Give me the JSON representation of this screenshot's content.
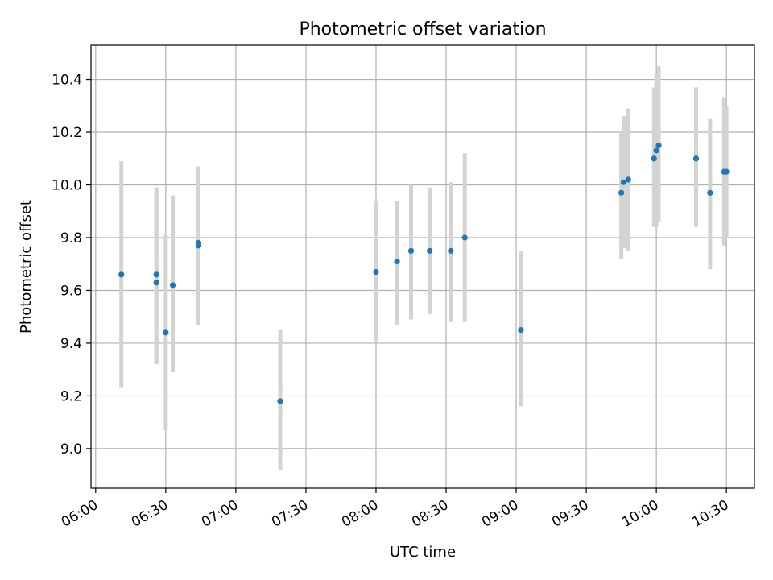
{
  "chart_data": {
    "type": "scatter",
    "title": "Photometric offset variation",
    "xlabel": "UTC time",
    "ylabel": "Photometric offset",
    "xlim": [
      "05:58",
      "10:42"
    ],
    "ylim": [
      8.85,
      10.53
    ],
    "x_ticks": [
      "06:00",
      "06:30",
      "07:00",
      "07:30",
      "08:00",
      "08:30",
      "09:00",
      "09:30",
      "10:00",
      "10:30"
    ],
    "y_ticks": [
      "9.0",
      "9.2",
      "9.4",
      "9.6",
      "9.8",
      "10.0",
      "10.2",
      "10.4"
    ],
    "grid": true,
    "colors": {
      "marker": "#1f77b4",
      "error_bar": "#d3d3d3"
    },
    "series": [
      {
        "points": [
          {
            "x": "06:11",
            "y": 9.66,
            "low": 9.23,
            "high": 10.09
          },
          {
            "x": "06:26",
            "y": 9.66,
            "low": 9.32,
            "high": 9.99
          },
          {
            "x": "06:26",
            "y": 9.63,
            "low": 9.32,
            "high": 9.99
          },
          {
            "x": "06:30",
            "y": 9.44,
            "low": 9.07,
            "high": 9.81
          },
          {
            "x": "06:33",
            "y": 9.62,
            "low": 9.29,
            "high": 9.96
          },
          {
            "x": "06:44",
            "y": 9.78,
            "low": 9.49,
            "high": 10.07
          },
          {
            "x": "06:44",
            "y": 9.77,
            "low": 9.47,
            "high": 10.06
          },
          {
            "x": "07:19",
            "y": 9.18,
            "low": 8.92,
            "high": 9.45
          },
          {
            "x": "08:00",
            "y": 9.67,
            "low": 9.41,
            "high": 9.94
          },
          {
            "x": "08:09",
            "y": 9.71,
            "low": 9.47,
            "high": 9.94
          },
          {
            "x": "08:15",
            "y": 9.75,
            "low": 9.49,
            "high": 10.0
          },
          {
            "x": "08:23",
            "y": 9.75,
            "low": 9.51,
            "high": 9.99
          },
          {
            "x": "08:32",
            "y": 9.75,
            "low": 9.48,
            "high": 10.01
          },
          {
            "x": "08:38",
            "y": 9.8,
            "low": 9.48,
            "high": 10.12
          },
          {
            "x": "09:02",
            "y": 9.45,
            "low": 9.16,
            "high": 9.75
          },
          {
            "x": "09:45",
            "y": 9.97,
            "low": 9.72,
            "high": 10.2
          },
          {
            "x": "09:46",
            "y": 10.01,
            "low": 9.76,
            "high": 10.26
          },
          {
            "x": "09:48",
            "y": 10.02,
            "low": 9.75,
            "high": 10.29
          },
          {
            "x": "09:59",
            "y": 10.1,
            "low": 9.84,
            "high": 10.37
          },
          {
            "x": "10:00",
            "y": 10.13,
            "low": 9.84,
            "high": 10.42
          },
          {
            "x": "10:01",
            "y": 10.15,
            "low": 9.86,
            "high": 10.45
          },
          {
            "x": "10:17",
            "y": 10.1,
            "low": 9.84,
            "high": 10.37
          },
          {
            "x": "10:23",
            "y": 9.97,
            "low": 9.68,
            "high": 10.25
          },
          {
            "x": "10:29",
            "y": 10.05,
            "low": 9.77,
            "high": 10.33
          },
          {
            "x": "10:30",
            "y": 10.05,
            "low": 9.8,
            "high": 10.3
          }
        ]
      }
    ]
  }
}
